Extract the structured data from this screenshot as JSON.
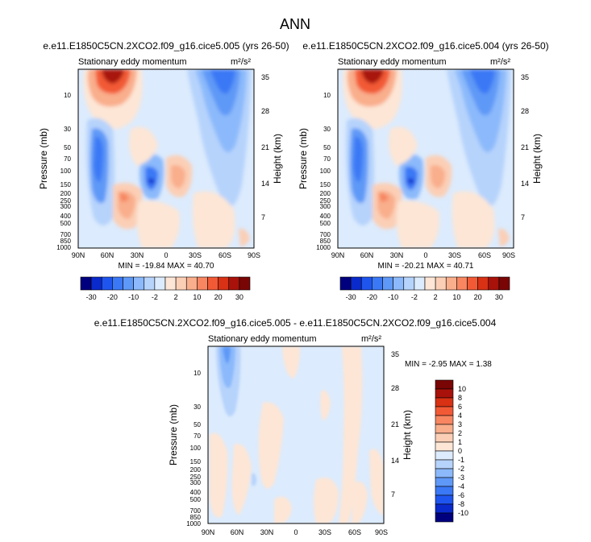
{
  "figure": {
    "title": "ANN"
  },
  "colors": {
    "top_scale": [
      "#00007f",
      "#0a2acc",
      "#1f55ef",
      "#3a78f5",
      "#5f99f7",
      "#8bb9fb",
      "#b6d3fc",
      "#dcebfd",
      "#fde6d6",
      "#fbcfb6",
      "#f9ae8c",
      "#f78661",
      "#f25a36",
      "#d83114",
      "#a8120a",
      "#7a0505"
    ],
    "diff_scale": [
      "#00007f",
      "#0a2acc",
      "#1f55ef",
      "#3a78f5",
      "#5f99f7",
      "#8bb9fb",
      "#b6d3fc",
      "#dcebfd",
      "#fde6d6",
      "#fbcfb6",
      "#f9ae8c",
      "#f78661",
      "#f25a36",
      "#d83114",
      "#a8120a",
      "#7a0505"
    ]
  },
  "chart_data": [
    {
      "type": "heatmap",
      "title": "e.e11.E1850C5CN.2XCO2.f09_g16.cice5.005 (yrs 26-50)",
      "subtitle": "Stationary eddy momentum",
      "units": "m²/s²",
      "ylabel": "Pressure (mb)",
      "ylabel_right": "Height (km)",
      "x_ticks": [
        "90N",
        "60N",
        "30N",
        "0",
        "30S",
        "60S",
        "90S"
      ],
      "y_ticks": [
        "10",
        "30",
        "50",
        "70",
        "100",
        "150",
        "200",
        "250",
        "300",
        "400",
        "500",
        "700",
        "850",
        "1000"
      ],
      "y_ticks_right": [
        "35",
        "28",
        "21",
        "14",
        "7"
      ],
      "min_max_text": "MIN = -19.84  MAX = 40.70",
      "colorbar_labels": [
        "-30",
        "-20",
        "-10",
        "-2",
        "2",
        "10",
        "20",
        "30"
      ]
    },
    {
      "type": "heatmap",
      "title": "e.e11.E1850C5CN.2XCO2.f09_g16.cice5.004 (yrs 26-50)",
      "subtitle": "Stationary eddy momentum",
      "units": "m²/s²",
      "ylabel": "Pressure (mb)",
      "ylabel_right": "Height (km)",
      "x_ticks": [
        "90N",
        "60N",
        "30N",
        "0",
        "30S",
        "60S",
        "90S"
      ],
      "y_ticks": [
        "10",
        "30",
        "50",
        "70",
        "100",
        "150",
        "200",
        "250",
        "300",
        "400",
        "500",
        "700",
        "850",
        "1000"
      ],
      "y_ticks_right": [
        "35",
        "28",
        "21",
        "14",
        "7"
      ],
      "min_max_text": "MIN = -20.21  MAX = 40.71",
      "colorbar_labels": [
        "-30",
        "-20",
        "-10",
        "-2",
        "2",
        "10",
        "20",
        "30"
      ]
    },
    {
      "type": "heatmap",
      "title": "e.e11.E1850C5CN.2XCO2.f09_g16.cice5.005 - e.e11.E1850C5CN.2XCO2.f09_g16.cice5.004",
      "subtitle": "Stationary eddy momentum",
      "units": "m²/s²",
      "ylabel": "Pressure (mb)",
      "ylabel_right": "Height (km)",
      "x_ticks": [
        "90N",
        "60N",
        "30N",
        "0",
        "30S",
        "60S",
        "90S"
      ],
      "y_ticks": [
        "10",
        "30",
        "50",
        "70",
        "100",
        "150",
        "200",
        "250",
        "300",
        "400",
        "500",
        "700",
        "850",
        "1000"
      ],
      "y_ticks_right": [
        "35",
        "28",
        "21",
        "14",
        "7"
      ],
      "min_max_text": "MIN = -2.95  MAX =  1.38",
      "colorbar_labels": [
        "10",
        "8",
        "6",
        "4",
        "3",
        "2",
        "1",
        "0",
        "-1",
        "-2",
        "-3",
        "-4",
        "-6",
        "-8",
        "-10"
      ]
    }
  ]
}
